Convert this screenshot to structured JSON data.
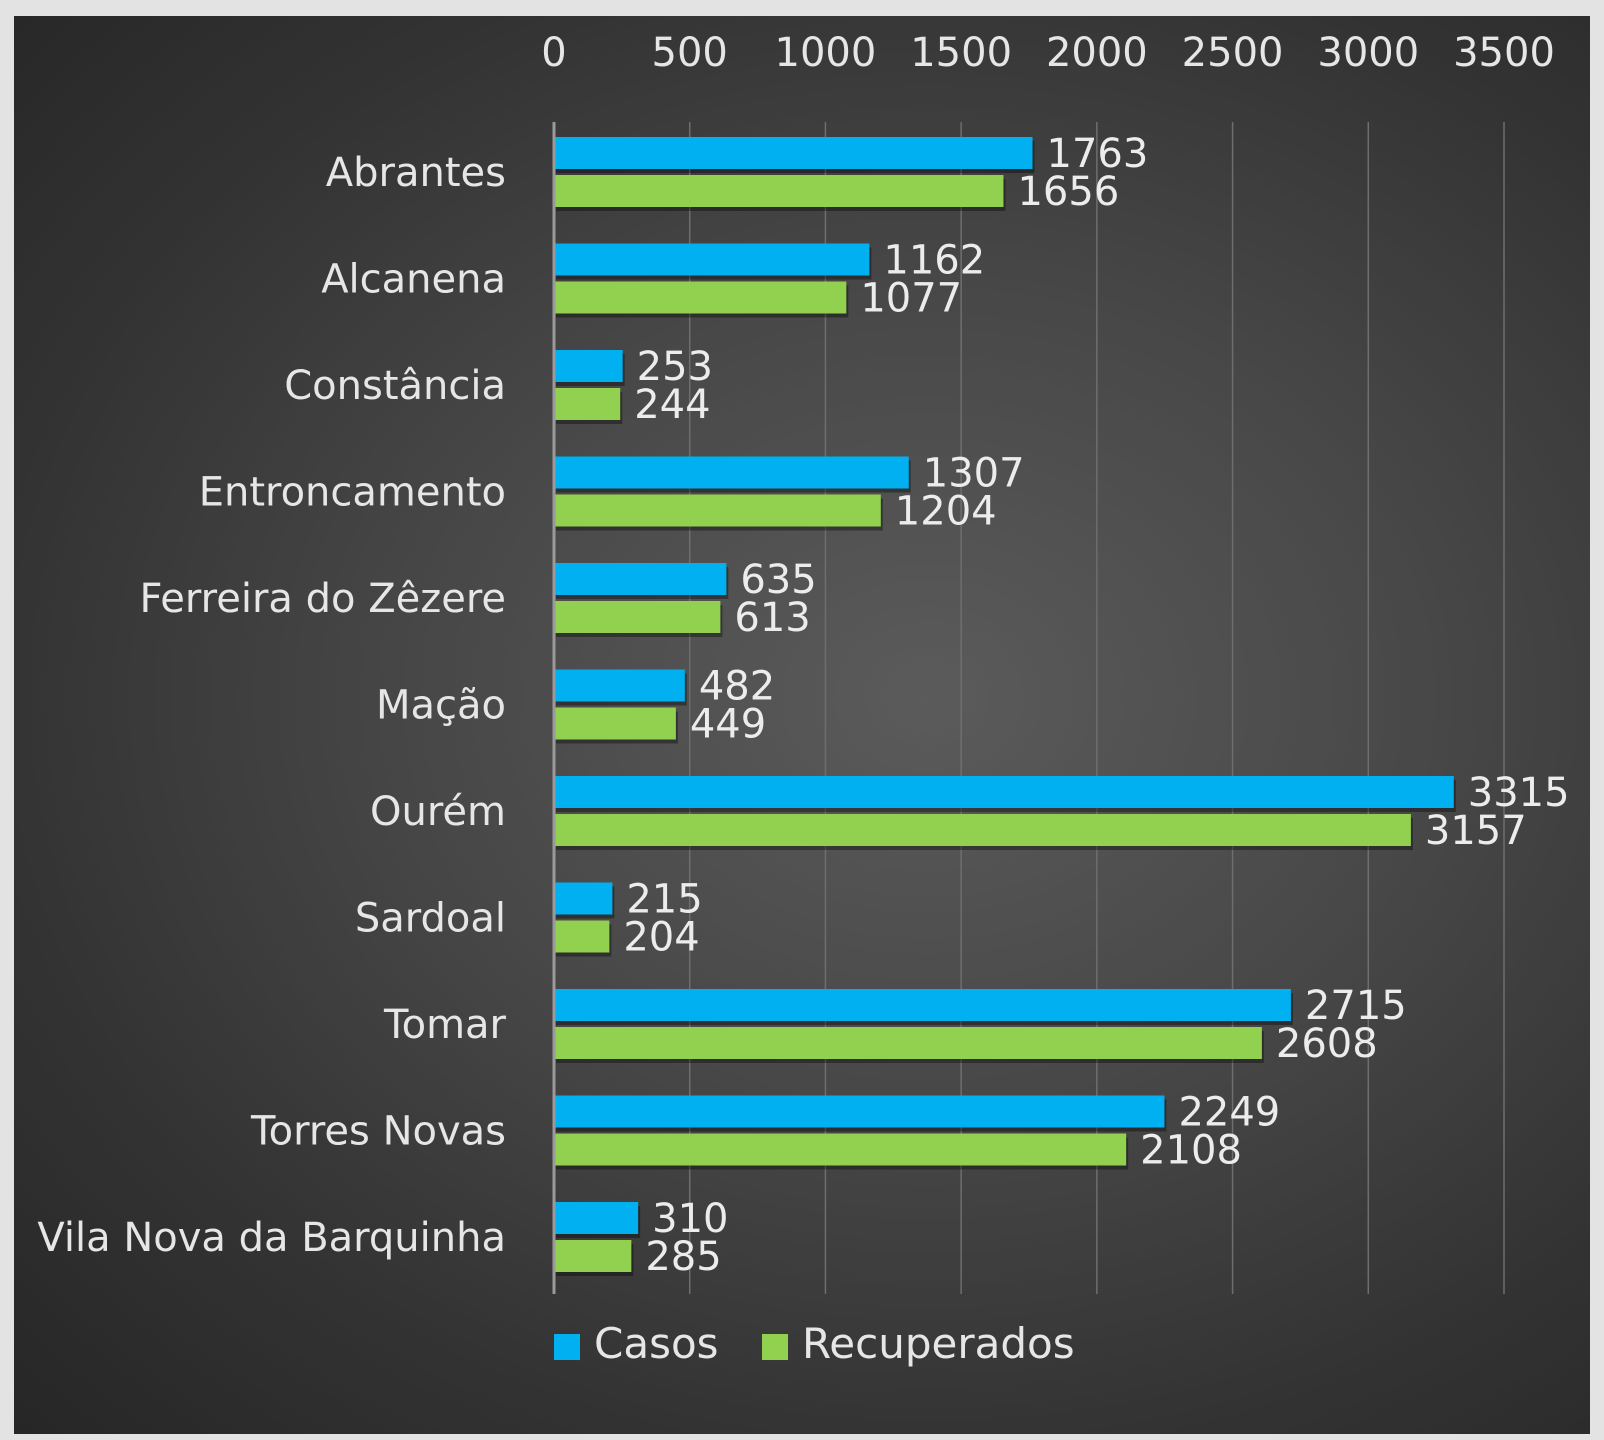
{
  "chart_data": {
    "type": "bar",
    "orientation": "horizontal",
    "categories": [
      "Abrantes",
      "Alcanena",
      "Constância",
      "Entroncamento",
      "Ferreira do Zêzere",
      "Mação",
      "Ourém",
      "Sardoal",
      "Tomar",
      "Torres Novas",
      "Vila Nova da Barquinha"
    ],
    "series": [
      {
        "name": "Casos",
        "color": "#00b0f0",
        "values": [
          1763,
          1162,
          253,
          1307,
          635,
          482,
          3315,
          215,
          2715,
          2249,
          310
        ]
      },
      {
        "name": "Recuperados",
        "color": "#92d050",
        "values": [
          1656,
          1077,
          244,
          1204,
          613,
          449,
          3157,
          204,
          2608,
          2108,
          285
        ]
      }
    ],
    "xlim": [
      0,
      3500
    ],
    "x_ticks": [
      "0",
      "500",
      "1000",
      "1500",
      "2000",
      "2500",
      "3000",
      "3500"
    ],
    "x_axis_position": "top",
    "grid": true,
    "legend": "bottom",
    "data_labels": true
  }
}
